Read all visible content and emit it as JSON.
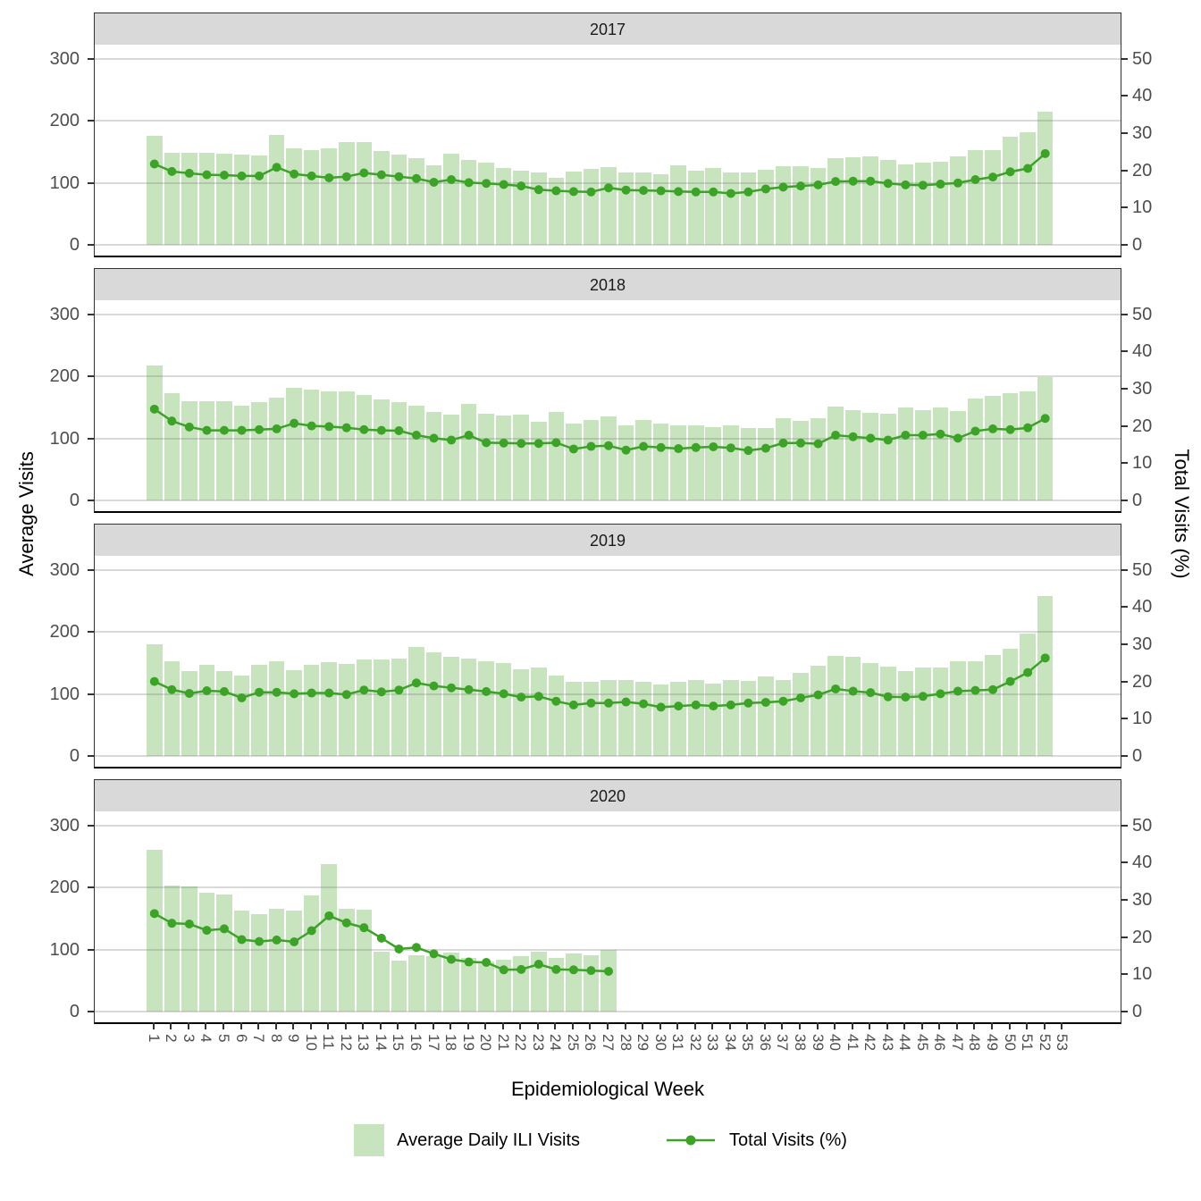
{
  "colors": {
    "bar": "#c8e4be",
    "line": "#3ca228",
    "strip_bg": "#d9d9d9",
    "grid": "#c9c9c9",
    "tick_label": "#4d4d4d",
    "axis_title": "#000000"
  },
  "legend": {
    "bar_label": "Average Daily ILI Visits",
    "line_label": "Total Visits (%)"
  },
  "chart_data": {
    "type": "bar+line",
    "facet_by": "year",
    "xlabel": "Epidemiological Week",
    "ylabel_left": "Average Visits",
    "ylabel_right": "Total Visits (%)",
    "x_categories": [
      1,
      2,
      3,
      4,
      5,
      6,
      7,
      8,
      9,
      10,
      11,
      12,
      13,
      14,
      15,
      16,
      17,
      18,
      19,
      20,
      21,
      22,
      23,
      24,
      25,
      26,
      27,
      28,
      29,
      30,
      31,
      32,
      33,
      34,
      35,
      36,
      37,
      38,
      39,
      40,
      41,
      42,
      43,
      44,
      45,
      46,
      47,
      48,
      49,
      50,
      51,
      52,
      53
    ],
    "left_axis": {
      "ticks": [
        300,
        200,
        100,
        0
      ],
      "range": [
        0,
        322
      ]
    },
    "right_axis": {
      "ticks": [
        50,
        40,
        30,
        20,
        10,
        0
      ],
      "range": [
        0,
        53.7
      ],
      "note": "right value = left value / 6"
    },
    "grid": "horizontal major lines at left-axis ticks",
    "legend_position": "bottom",
    "facets": [
      {
        "year": "2017",
        "bar_series": "Average Daily ILI Visits",
        "bars": [
          175,
          148,
          148,
          148,
          147,
          145,
          144,
          177,
          156,
          152,
          156,
          165,
          165,
          151,
          146,
          140,
          128,
          147,
          136,
          132,
          124,
          119,
          116,
          108,
          118,
          122,
          125,
          116,
          116,
          113,
          128,
          120,
          124,
          116,
          117,
          121,
          127,
          127,
          124,
          139,
          141,
          143,
          136,
          130,
          133,
          134,
          142,
          152,
          152,
          174,
          182,
          214
        ],
        "line_series": "Total Visits (%)",
        "line_pct": [
          21.7,
          19.7,
          19.2,
          18.8,
          18.7,
          18.5,
          18.5,
          20.8,
          19.0,
          18.5,
          18.0,
          18.3,
          19.3,
          18.8,
          18.3,
          17.8,
          16.8,
          17.5,
          16.7,
          16.5,
          16.2,
          15.8,
          14.8,
          14.5,
          14.3,
          14.2,
          15.3,
          14.7,
          14.6,
          14.5,
          14.3,
          14.2,
          14.2,
          13.8,
          14.2,
          15.0,
          15.5,
          15.8,
          16.1,
          17.0,
          17.1,
          17.1,
          16.5,
          16.1,
          16.0,
          16.3,
          16.6,
          17.5,
          18.2,
          19.6,
          20.5,
          24.5
        ]
      },
      {
        "year": "2018",
        "bar_series": "Average Daily ILI Visits",
        "bars": [
          217,
          172,
          160,
          160,
          160,
          152,
          158,
          165,
          181,
          178,
          176,
          175,
          170,
          163,
          158,
          152,
          143,
          138,
          155,
          140,
          137,
          138,
          127,
          142,
          124,
          130,
          135,
          121,
          130,
          124,
          121,
          121,
          118,
          121,
          117,
          117,
          132,
          128,
          132,
          151,
          146,
          141,
          139,
          149,
          146,
          150,
          144,
          164,
          168,
          172,
          176,
          198
        ],
        "line_series": "Total Visits (%)",
        "line_pct": [
          24.5,
          21.3,
          19.7,
          18.8,
          18.8,
          18.8,
          19.0,
          19.2,
          20.7,
          20.0,
          19.8,
          19.5,
          19.0,
          18.8,
          18.7,
          17.5,
          16.7,
          16.2,
          17.5,
          15.5,
          15.4,
          15.3,
          15.3,
          15.5,
          13.8,
          14.5,
          14.7,
          13.5,
          14.5,
          14.2,
          13.9,
          14.2,
          14.4,
          14.1,
          13.4,
          14.0,
          15.4,
          15.4,
          15.2,
          17.5,
          17.1,
          16.7,
          16.2,
          17.5,
          17.5,
          17.8,
          16.7,
          18.6,
          19.2,
          19.0,
          19.5,
          22.0
        ]
      },
      {
        "year": "2019",
        "bar_series": "Average Daily ILI Visits",
        "bars": [
          180,
          152,
          136,
          147,
          136,
          130,
          147,
          153,
          138,
          147,
          151,
          148,
          155,
          156,
          157,
          176,
          167,
          160,
          157,
          152,
          150,
          140,
          143,
          129,
          120,
          119,
          122,
          122,
          120,
          115,
          120,
          122,
          117,
          123,
          121,
          128,
          122,
          134,
          146,
          161,
          160,
          150,
          144,
          137,
          142,
          142,
          153,
          153,
          163,
          173,
          197,
          257
        ],
        "line_series": "Total Visits (%)",
        "line_pct": [
          20.0,
          17.8,
          16.8,
          17.5,
          17.3,
          15.6,
          17.1,
          17.1,
          16.7,
          16.9,
          16.9,
          16.5,
          17.7,
          17.2,
          17.7,
          19.6,
          18.8,
          18.3,
          17.8,
          17.3,
          16.7,
          15.8,
          16.0,
          14.7,
          13.7,
          14.2,
          14.2,
          14.5,
          14.0,
          13.1,
          13.4,
          13.7,
          13.4,
          13.7,
          14.2,
          14.4,
          14.7,
          15.6,
          16.4,
          18.0,
          17.4,
          17.0,
          15.9,
          15.8,
          16.0,
          16.7,
          17.4,
          17.6,
          17.8,
          20.0,
          22.4,
          26.3
        ]
      },
      {
        "year": "2020",
        "bar_series": "Average Daily ILI Visits",
        "bars": [
          261,
          203,
          202,
          191,
          188,
          163,
          157,
          166,
          163,
          187,
          237,
          166,
          164,
          96,
          82,
          90,
          89,
          95,
          86,
          80,
          84,
          89,
          96,
          87,
          94,
          90,
          100
        ],
        "line_series": "Total Visits (%)",
        "line_pct": [
          26.3,
          23.7,
          23.5,
          21.8,
          22.2,
          19.3,
          18.8,
          19.2,
          18.7,
          21.7,
          25.7,
          23.8,
          22.5,
          19.7,
          16.8,
          17.2,
          15.5,
          14.0,
          13.3,
          13.2,
          11.2,
          11.3,
          12.7,
          11.3,
          11.2,
          11.0,
          10.8
        ]
      }
    ]
  }
}
